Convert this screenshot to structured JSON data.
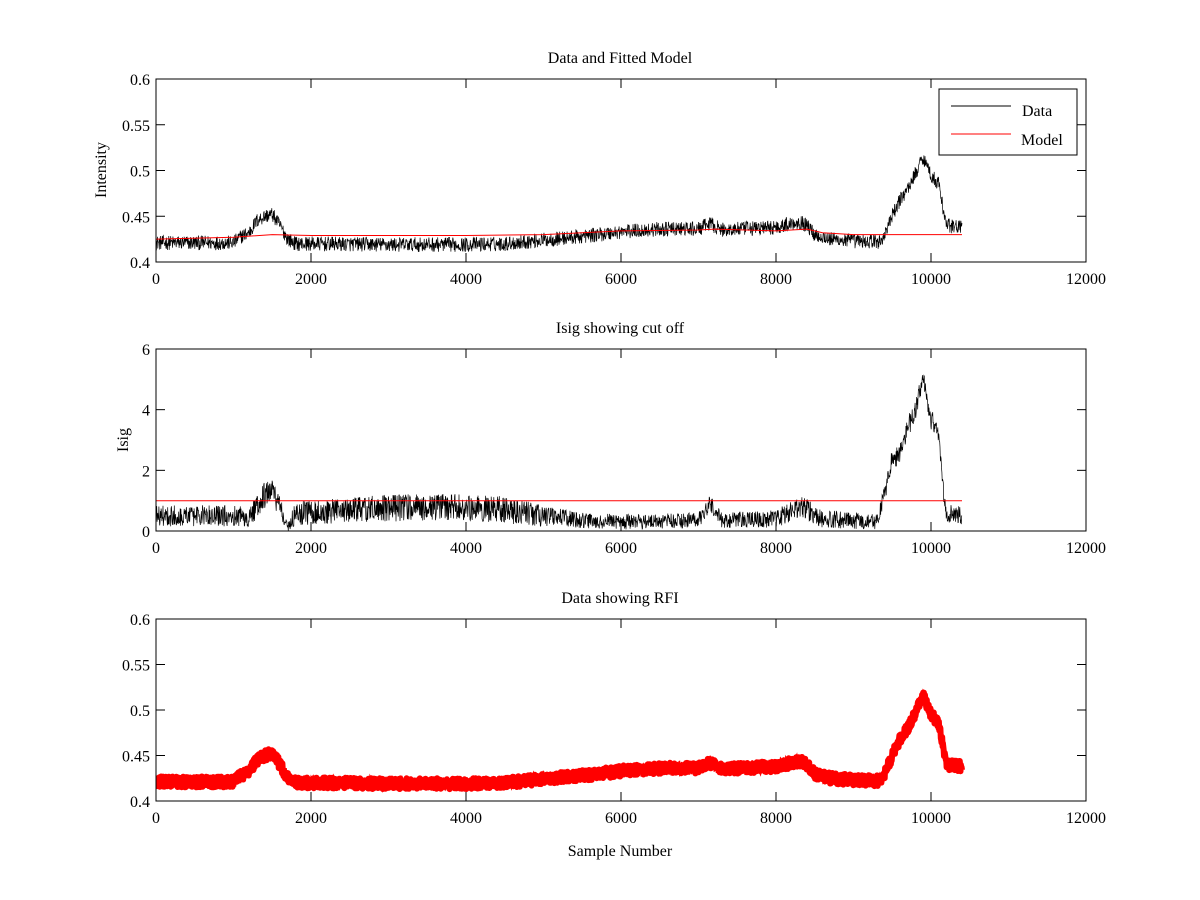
{
  "chart_data": [
    {
      "type": "line",
      "title": "Data and Fitted Model",
      "xlabel": "",
      "ylabel": "Intensity",
      "xlim": [
        0,
        12000
      ],
      "ylim": [
        0.4,
        0.6
      ],
      "xticks": [
        0,
        2000,
        4000,
        6000,
        8000,
        10000,
        12000
      ],
      "yticks": [
        0.4,
        0.45,
        0.5,
        0.55,
        0.6
      ],
      "xtick_labels": [
        "0",
        "2000",
        "4000",
        "6000",
        "8000",
        "10000",
        "12000"
      ],
      "ytick_labels": [
        "0.4",
        "0.45",
        "0.5",
        "0.55",
        "0.6"
      ],
      "legend": {
        "placement": "top-right",
        "entries": [
          "Data",
          "Model"
        ]
      },
      "series": [
        {
          "name": "Data",
          "color": "#000000",
          "style": "noisy-line",
          "noise": 0.008,
          "x": [
            0,
            1000,
            1100,
            1200,
            1300,
            1400,
            1500,
            1600,
            1700,
            1800,
            2000,
            3000,
            4000,
            4500,
            5000,
            5500,
            6000,
            6500,
            7000,
            7150,
            7300,
            7500,
            8000,
            8300,
            8400,
            8500,
            8700,
            9000,
            9350,
            9400,
            9500,
            9600,
            9700,
            9800,
            9900,
            10000,
            10100,
            10150,
            10200,
            10400
          ],
          "y": [
            0.421,
            0.421,
            0.428,
            0.432,
            0.445,
            0.45,
            0.452,
            0.44,
            0.425,
            0.42,
            0.42,
            0.419,
            0.419,
            0.42,
            0.424,
            0.428,
            0.433,
            0.436,
            0.436,
            0.442,
            0.435,
            0.436,
            0.438,
            0.444,
            0.44,
            0.43,
            0.425,
            0.423,
            0.422,
            0.43,
            0.45,
            0.468,
            0.48,
            0.497,
            0.515,
            0.495,
            0.485,
            0.462,
            0.44,
            0.438
          ]
        },
        {
          "name": "Model",
          "color": "#ff0000",
          "style": "line",
          "x": [
            0,
            1000,
            1500,
            2000,
            3000,
            4000,
            5000,
            5500,
            6000,
            7000,
            7200,
            8000,
            8400,
            8600,
            9000,
            9400,
            10400
          ],
          "y": [
            0.425,
            0.427,
            0.43,
            0.429,
            0.429,
            0.429,
            0.43,
            0.432,
            0.434,
            0.435,
            0.436,
            0.434,
            0.436,
            0.432,
            0.43,
            0.43,
            0.43
          ]
        }
      ]
    },
    {
      "type": "line",
      "title": "Isig showing cut off",
      "xlabel": "",
      "ylabel": "Isig",
      "xlim": [
        0,
        12000
      ],
      "ylim": [
        0,
        6
      ],
      "xticks": [
        0,
        2000,
        4000,
        6000,
        8000,
        10000,
        12000
      ],
      "yticks": [
        0,
        2,
        4,
        6
      ],
      "xtick_labels": [
        "0",
        "2000",
        "4000",
        "6000",
        "8000",
        "10000",
        "12000"
      ],
      "ytick_labels": [
        "0",
        "2",
        "4",
        "6"
      ],
      "series": [
        {
          "color": "#000000",
          "style": "noisy-band",
          "x": [
            0,
            1100,
            1200,
            1300,
            1400,
            1500,
            1600,
            1700,
            1800,
            2000,
            3000,
            4000,
            4500,
            5000,
            5500,
            6000,
            7000,
            7150,
            7300,
            8000,
            8300,
            8400,
            8600,
            9300,
            9400,
            9500,
            9600,
            9700,
            9800,
            9900,
            10000,
            10100,
            10150,
            10200,
            10400
          ],
          "y": [
            0.5,
            0.5,
            0.4,
            0.8,
            1.2,
            1.3,
            0.8,
            0.1,
            0.6,
            0.6,
            0.75,
            0.8,
            0.7,
            0.5,
            0.35,
            0.3,
            0.35,
            0.9,
            0.35,
            0.4,
            0.8,
            0.7,
            0.4,
            0.3,
            1.2,
            2.4,
            2.5,
            3.4,
            4.0,
            5.0,
            3.7,
            3.2,
            1.5,
            0.6,
            0.5
          ],
          "spread": [
            0.35,
            0.35,
            0.3,
            0.4,
            0.45,
            0.45,
            0.35,
            0.15,
            0.4,
            0.4,
            0.45,
            0.45,
            0.45,
            0.35,
            0.25,
            0.25,
            0.25,
            0.3,
            0.25,
            0.3,
            0.35,
            0.35,
            0.3,
            0.25,
            0.3,
            0.35,
            0.35,
            0.35,
            0.35,
            0.35,
            0.35,
            0.35,
            0.3,
            0.3,
            0.3
          ]
        },
        {
          "color": "#ff0000",
          "style": "line",
          "x": [
            0,
            10400
          ],
          "y": [
            1,
            1
          ]
        }
      ]
    },
    {
      "type": "scatter",
      "title": "Data showing RFI",
      "xlabel": "Sample Number",
      "ylabel": "",
      "xlim": [
        0,
        12000
      ],
      "ylim": [
        0.4,
        0.6
      ],
      "xticks": [
        0,
        2000,
        4000,
        6000,
        8000,
        10000,
        12000
      ],
      "yticks": [
        0.4,
        0.45,
        0.5,
        0.55,
        0.6
      ],
      "xtick_labels": [
        "0",
        "2000",
        "4000",
        "6000",
        "8000",
        "10000",
        "12000"
      ],
      "ytick_labels": [
        "0.4",
        "0.45",
        "0.5",
        "0.55",
        "0.6"
      ],
      "series": [
        {
          "color": "#ff0000",
          "style": "thick-band",
          "x": [
            0,
            1000,
            1100,
            1200,
            1300,
            1400,
            1500,
            1600,
            1700,
            1800,
            2000,
            3000,
            4000,
            4500,
            5000,
            5500,
            6000,
            6500,
            7000,
            7150,
            7300,
            7500,
            8000,
            8300,
            8400,
            8500,
            8700,
            9000,
            9350,
            9400,
            9500,
            9600,
            9700,
            9800,
            9900,
            10000,
            10100,
            10150,
            10200,
            10400
          ],
          "y": [
            0.421,
            0.421,
            0.428,
            0.432,
            0.445,
            0.45,
            0.452,
            0.44,
            0.425,
            0.42,
            0.42,
            0.419,
            0.419,
            0.42,
            0.424,
            0.428,
            0.433,
            0.436,
            0.436,
            0.442,
            0.435,
            0.436,
            0.438,
            0.444,
            0.44,
            0.43,
            0.425,
            0.423,
            0.422,
            0.43,
            0.45,
            0.468,
            0.48,
            0.497,
            0.515,
            0.495,
            0.485,
            0.462,
            0.44,
            0.438
          ]
        }
      ]
    }
  ]
}
